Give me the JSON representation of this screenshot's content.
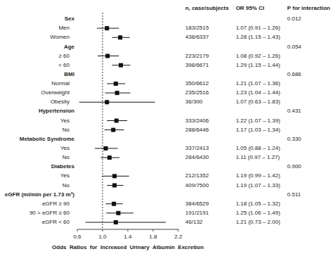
{
  "chart_data": {
    "type": "forest",
    "columns": [
      "n, case/subjects",
      "OR 95% CI",
      "P for interaction"
    ],
    "categories": [
      "Sex",
      "Men",
      "Women",
      "Age",
      "≥ 60",
      "< 60",
      "BMI",
      "Normal",
      "Overweight",
      "Obesity",
      "Hypertension",
      "Yes",
      "No",
      "Metabolic Syndrome",
      "Yes",
      "No",
      "Diabetes",
      "Yes",
      "No",
      "eGFR (ml/min per 1.73 m²)",
      "eGFR ≥ 90",
      "90 > eGFR ≥ 60",
      "eGFR < 60"
    ],
    "is_group": [
      true,
      false,
      false,
      true,
      false,
      false,
      true,
      false,
      false,
      false,
      true,
      false,
      false,
      true,
      false,
      false,
      true,
      false,
      false,
      true,
      false,
      false,
      false
    ],
    "n": [
      null,
      "183/2515",
      "438/6337",
      null,
      "223/2179",
      "398/6671",
      null,
      "350/6612",
      "235/2516",
      "36/300",
      null,
      "333/2406",
      "288/6446",
      null,
      "337/2413",
      "284/6430",
      null,
      "212/1352",
      "409/7500",
      null,
      "384/6529",
      "191/2191",
      "46/132"
    ],
    "values": [
      null,
      1.07,
      1.28,
      null,
      1.08,
      1.29,
      null,
      1.21,
      1.23,
      1.07,
      null,
      1.22,
      1.17,
      null,
      1.05,
      1.11,
      null,
      1.19,
      1.19,
      null,
      1.18,
      1.25,
      1.21
    ],
    "ci_lo": [
      null,
      0.91,
      1.15,
      null,
      0.92,
      1.15,
      null,
      1.07,
      1.04,
      0.63,
      null,
      1.07,
      1.03,
      null,
      0.88,
      0.97,
      null,
      0.99,
      1.07,
      null,
      1.05,
      1.06,
      0.73
    ],
    "ci_hi": [
      null,
      1.26,
      1.43,
      null,
      1.26,
      1.44,
      null,
      1.36,
      1.44,
      1.83,
      null,
      1.39,
      1.34,
      null,
      1.24,
      1.27,
      null,
      1.42,
      1.33,
      null,
      1.32,
      1.49,
      2.0
    ],
    "value_labels": [
      null,
      "1.07 (0.91 – 1.26)",
      "1.28 (1.15 – 1.43)",
      null,
      "1.08 (0.92 – 1.26)",
      "1.29 (1.15 – 1.44)",
      null,
      "1.21 (1.07 – 1.36)",
      "1.23 (1.04 – 1.44)",
      "1.07 (0.63 – 1.83)",
      null,
      "1.22 (1.07 – 1.39)",
      "1.17 (1.03 – 1.34)",
      null,
      "1.05 (0.88 – 1.24)",
      "1.11 (0.97 – 1.27)",
      null,
      "1.19 (0.99 – 1.42)",
      "1.19 (1.07 – 1.33)",
      null,
      "1.18 (1.05 – 1.32)",
      "1.25 (1.06 – 1.49)",
      "1.21 (0.73 – 2.00)"
    ],
    "p": [
      "0.012",
      null,
      null,
      "0.054",
      null,
      null,
      "0.686",
      null,
      null,
      null,
      "0.431",
      null,
      null,
      "0.330",
      null,
      null,
      "0.900",
      null,
      null,
      "0.511",
      null,
      null,
      null
    ],
    "xlim": [
      0.6,
      2.2
    ],
    "xticks": [
      0.6,
      {
        "value": 1.0,
        "label": "1.0"
      },
      1.4,
      1.8,
      2.2
    ],
    "xlabel": "Odds  Ratios  for  Increased  Urinary  Albumin  Excretion",
    "ref_line": 1.0,
    "color": "#111111"
  }
}
